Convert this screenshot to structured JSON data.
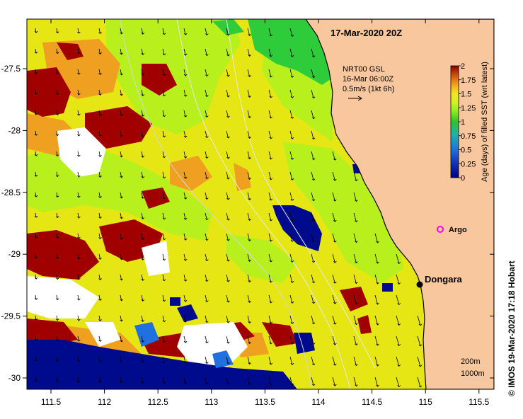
{
  "map": {
    "timestamp": "17-Mar-2020 20Z",
    "current_info": {
      "line1": "NRT00 GSL",
      "line2": "16-Mar 06:00Z",
      "line3": "0.5m/s (1kt 6h)"
    },
    "colorbar": {
      "title": "Age (days) of filled SST (wrt latest)",
      "ticks": [
        "2",
        "1.75",
        "1.5",
        "1.25",
        "1",
        "0.75",
        "0.5",
        "0.25",
        "0"
      ],
      "colors": [
        "#8b0000",
        "#b03a10",
        "#e06a10",
        "#f0a020",
        "#e8d020",
        "#f2ee20",
        "#bff020",
        "#90f020",
        "#30c030",
        "#20b0b0",
        "#2070e0",
        "#1030b0",
        "#000080"
      ]
    },
    "lon_ticks": [
      "111.5",
      "112",
      "112.5",
      "113",
      "113.5",
      "114",
      "114.5",
      "115",
      "115.5"
    ],
    "lat_ticks": [
      "-27.5",
      "-28",
      "-28.5",
      "-29",
      "-29.5",
      "-30"
    ],
    "places": {
      "dongara": "Dongara",
      "argo": "Argo"
    },
    "depth_legend": {
      "line1": "200m",
      "line2": "1000m"
    },
    "credit": "©  IMOS 19-Mar-2020 17:18 Hobart",
    "colors": {
      "land": "#f9c79d",
      "argo": "#ff00ff",
      "dark_red": "#a00000",
      "orange": "#f0a020",
      "yellow": "#e6e614",
      "lime": "#b8f01e",
      "green": "#2ecc3a",
      "navy": "#000a8c"
    }
  }
}
